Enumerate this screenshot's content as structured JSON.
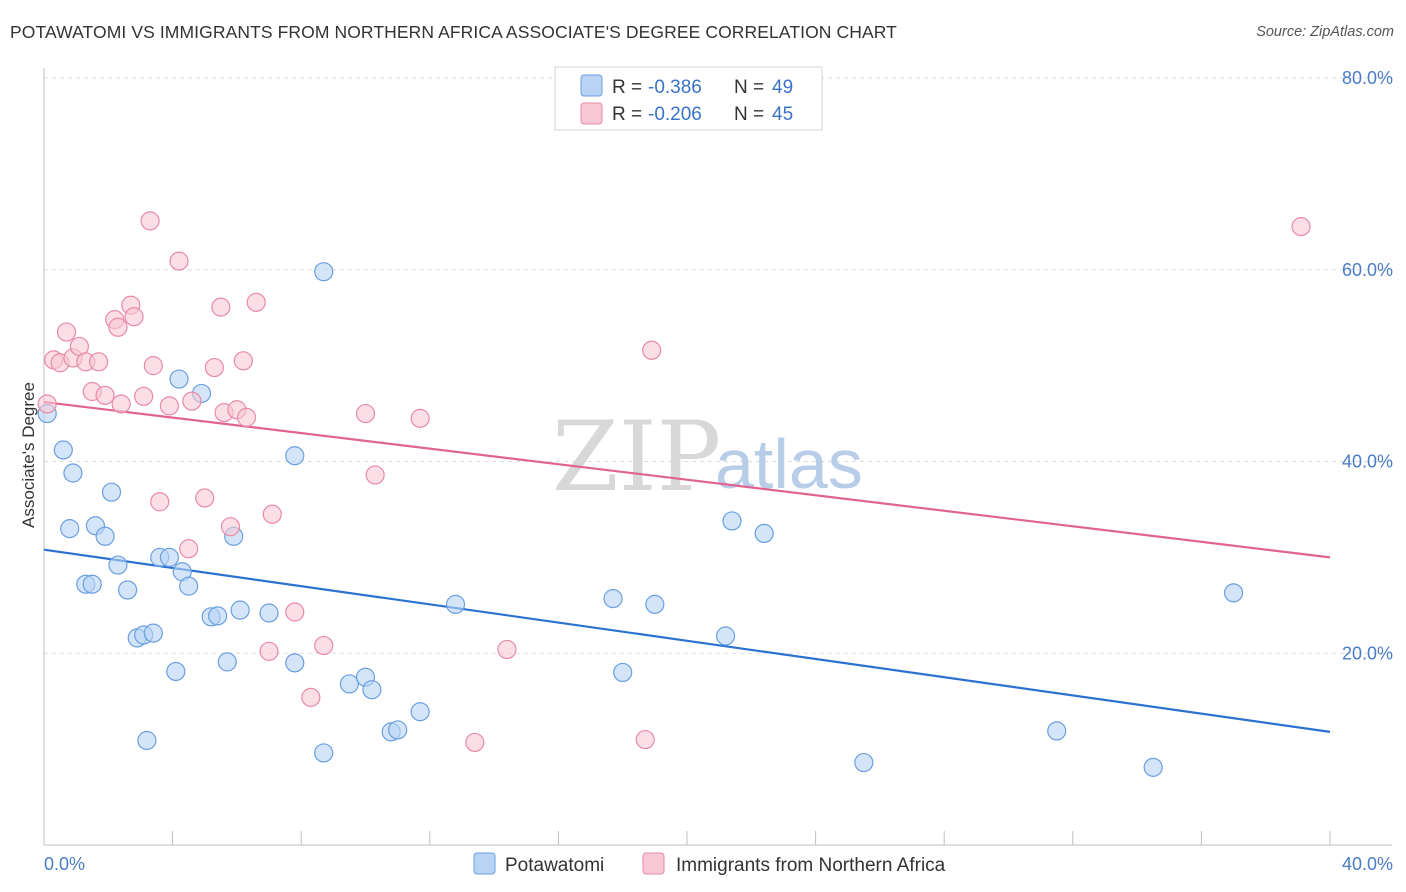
{
  "header": {
    "title": "POTAWATOMI VS IMMIGRANTS FROM NORTHERN AFRICA ASSOCIATE'S DEGREE CORRELATION CHART",
    "source": "Source: ZipAtlas.com"
  },
  "watermark": {
    "zip": "ZIP",
    "atlas": "atlas"
  },
  "legend": {
    "r_label": "R =",
    "n_label": "N =",
    "rows": [
      {
        "r": "-0.386",
        "n": "49",
        "fill": "#b9d3f5",
        "stroke": "#6a9fe0"
      },
      {
        "r": "-0.206",
        "n": "45",
        "fill": "#f9c8d6",
        "stroke": "#e88aa8"
      }
    ]
  },
  "bottom_legend": [
    "Potawatomi",
    "Immigrants from Northern Africa"
  ],
  "chart_data": {
    "type": "scatter",
    "title": "POTAWATOMI VS IMMIGRANTS FROM NORTHERN AFRICA ASSOCIATE'S DEGREE CORRELATION CHART",
    "xlabel": "",
    "ylabel": "Associate's Degree",
    "xlim": [
      0,
      40
    ],
    "ylim": [
      0,
      80
    ],
    "x_tick_labels": [
      "0.0%",
      "40.0%"
    ],
    "y_ticks": [
      20,
      40,
      60,
      80
    ],
    "y_tick_labels": [
      "20.0%",
      "40.0%",
      "60.0%",
      "80.0%"
    ],
    "grid": true,
    "series": [
      {
        "name": "Potawatomi",
        "color": "#6a9fe0",
        "fill": "#b9d3f5",
        "line_color": "#2b72d0",
        "trend": [
          [
            0,
            30.8
          ],
          [
            40,
            11.8
          ]
        ],
        "points": [
          [
            0.1,
            45.0
          ],
          [
            0.6,
            41.2
          ],
          [
            0.9,
            38.8
          ],
          [
            0.8,
            33.0
          ],
          [
            1.6,
            33.3
          ],
          [
            2.1,
            36.8
          ],
          [
            1.9,
            32.2
          ],
          [
            2.3,
            29.2
          ],
          [
            1.3,
            27.2
          ],
          [
            1.5,
            27.2
          ],
          [
            2.6,
            26.6
          ],
          [
            2.9,
            21.6
          ],
          [
            3.1,
            21.9
          ],
          [
            3.4,
            22.1
          ],
          [
            3.6,
            30.0
          ],
          [
            3.9,
            30.0
          ],
          [
            4.3,
            28.5
          ],
          [
            4.5,
            27.0
          ],
          [
            4.2,
            48.6
          ],
          [
            4.9,
            47.1
          ],
          [
            5.2,
            23.8
          ],
          [
            5.4,
            23.9
          ],
          [
            5.7,
            19.1
          ],
          [
            5.9,
            32.2
          ],
          [
            6.1,
            24.5
          ],
          [
            7.0,
            24.2
          ],
          [
            7.8,
            19.0
          ],
          [
            7.8,
            40.6
          ],
          [
            8.7,
            59.8
          ],
          [
            8.7,
            9.6
          ],
          [
            9.5,
            16.8
          ],
          [
            10.0,
            17.5
          ],
          [
            10.2,
            16.2
          ],
          [
            10.8,
            11.8
          ],
          [
            11.0,
            12.0
          ],
          [
            11.7,
            13.9
          ],
          [
            12.8,
            25.1
          ],
          [
            3.2,
            10.9
          ],
          [
            4.1,
            18.1
          ],
          [
            17.7,
            25.7
          ],
          [
            19.0,
            25.1
          ],
          [
            21.2,
            21.8
          ],
          [
            21.4,
            33.8
          ],
          [
            22.4,
            32.5
          ],
          [
            25.5,
            8.6
          ],
          [
            31.5,
            11.9
          ],
          [
            34.5,
            8.1
          ],
          [
            37.0,
            26.3
          ],
          [
            18.0,
            18.0
          ]
        ]
      },
      {
        "name": "Immigrants from Northern Africa",
        "color": "#e88aa8",
        "fill": "#f9c8d6",
        "line_color": "#e0648e",
        "trend": [
          [
            0,
            46.2
          ],
          [
            40,
            30.0
          ]
        ],
        "points": [
          [
            0.1,
            46.0
          ],
          [
            0.3,
            50.6
          ],
          [
            0.5,
            50.3
          ],
          [
            0.7,
            53.5
          ],
          [
            0.9,
            50.8
          ],
          [
            1.1,
            52.0
          ],
          [
            1.3,
            50.4
          ],
          [
            1.5,
            47.3
          ],
          [
            1.7,
            50.4
          ],
          [
            1.9,
            46.9
          ],
          [
            2.2,
            54.8
          ],
          [
            2.3,
            54.0
          ],
          [
            2.4,
            46.0
          ],
          [
            2.7,
            56.3
          ],
          [
            2.8,
            55.1
          ],
          [
            3.1,
            46.8
          ],
          [
            3.4,
            50.0
          ],
          [
            3.3,
            65.1
          ],
          [
            3.6,
            35.8
          ],
          [
            3.9,
            45.8
          ],
          [
            4.2,
            60.9
          ],
          [
            4.5,
            30.9
          ],
          [
            4.6,
            46.3
          ],
          [
            5.0,
            36.2
          ],
          [
            5.3,
            49.8
          ],
          [
            5.5,
            56.1
          ],
          [
            5.6,
            45.1
          ],
          [
            5.8,
            33.2
          ],
          [
            6.0,
            45.4
          ],
          [
            6.3,
            44.6
          ],
          [
            6.2,
            50.5
          ],
          [
            6.6,
            56.6
          ],
          [
            7.0,
            20.2
          ],
          [
            7.1,
            34.5
          ],
          [
            7.8,
            24.3
          ],
          [
            8.3,
            15.4
          ],
          [
            8.7,
            20.8
          ],
          [
            10.0,
            45.0
          ],
          [
            10.3,
            38.6
          ],
          [
            11.7,
            44.5
          ],
          [
            13.4,
            10.7
          ],
          [
            14.4,
            20.4
          ],
          [
            18.7,
            11.0
          ],
          [
            18.9,
            51.6
          ],
          [
            39.1,
            64.5
          ]
        ]
      }
    ]
  }
}
